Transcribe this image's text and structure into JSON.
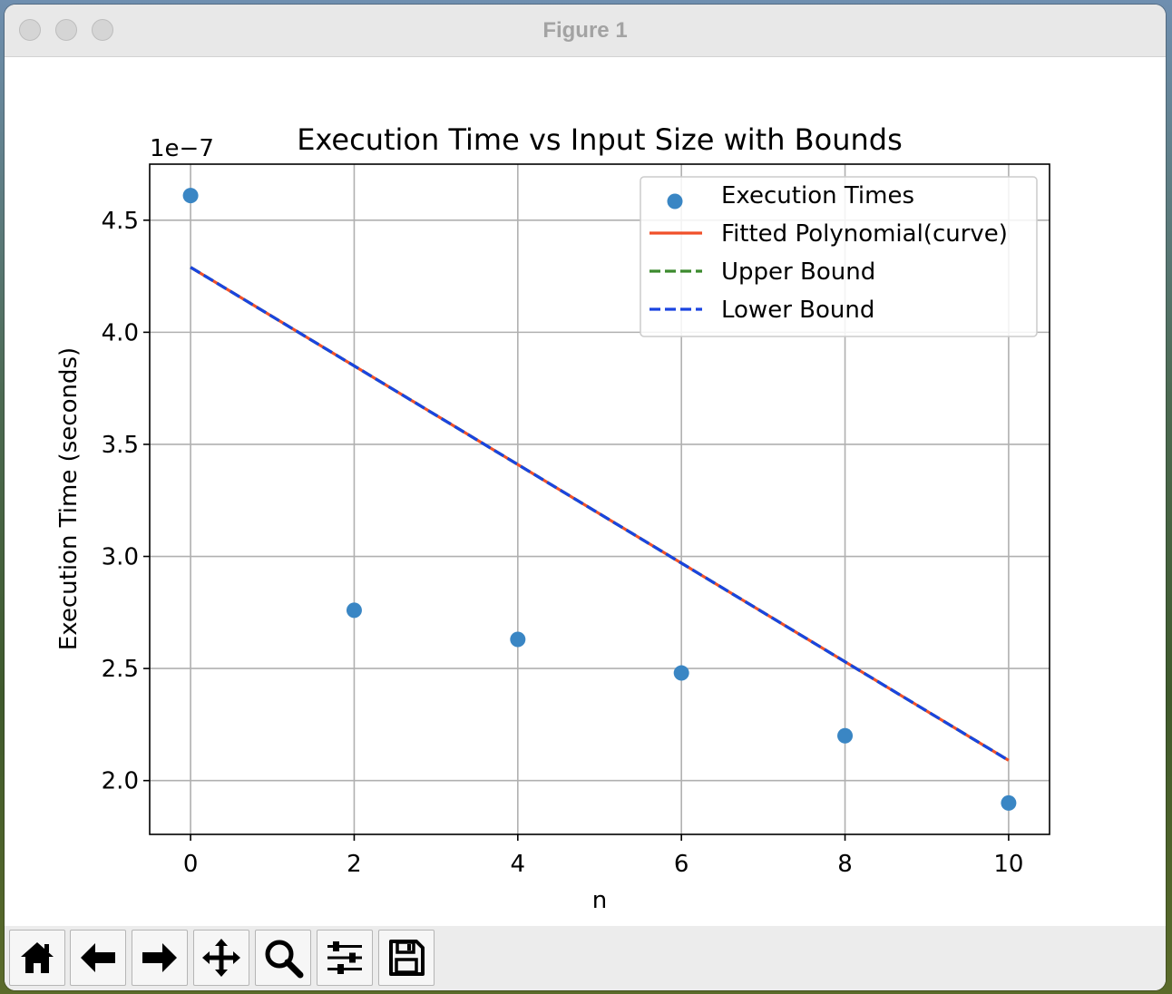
{
  "window": {
    "title": "Figure 1"
  },
  "toolbar": {
    "buttons": [
      {
        "name": "home-button",
        "icon": "home-icon"
      },
      {
        "name": "back-button",
        "icon": "arrow-left-icon"
      },
      {
        "name": "forward-button",
        "icon": "arrow-right-icon"
      },
      {
        "name": "pan-button",
        "icon": "move-icon"
      },
      {
        "name": "zoom-button",
        "icon": "magnifier-icon"
      },
      {
        "name": "configure-subplots-button",
        "icon": "sliders-icon"
      },
      {
        "name": "save-button",
        "icon": "floppy-disk-icon"
      }
    ]
  },
  "chart_data": {
    "type": "scatter",
    "title": "Execution Time vs Input Size with Bounds",
    "xlabel": "n",
    "ylabel": "Execution Time (seconds)",
    "y_offset_label": "1e−7",
    "xlim": [
      -0.5,
      10.5
    ],
    "ylim": [
      1.76,
      4.75
    ],
    "xticks": [
      0,
      2,
      4,
      6,
      8,
      10
    ],
    "xtick_labels": [
      "0",
      "2",
      "4",
      "6",
      "8",
      "10"
    ],
    "yticks": [
      2.0,
      2.5,
      3.0,
      3.5,
      4.0,
      4.5
    ],
    "ytick_labels": [
      "2.0",
      "2.5",
      "3.0",
      "3.5",
      "4.0",
      "4.5"
    ],
    "grid": true,
    "legend_position": "upper-right",
    "legend": [
      "Execution Times",
      "Fitted Polynomial(curve)",
      "Upper Bound",
      "Lower Bound"
    ],
    "series": [
      {
        "name": "Execution Times",
        "type": "scatter",
        "color": "#3a86c4",
        "x": [
          0,
          2,
          4,
          6,
          8,
          10
        ],
        "y": [
          4.61,
          2.76,
          2.63,
          2.48,
          2.2,
          1.9
        ]
      },
      {
        "name": "Fitted Polynomial(curve)",
        "type": "line",
        "style": "solid",
        "color": "#f0502a",
        "x": [
          0,
          10
        ],
        "y": [
          4.29,
          2.09
        ]
      },
      {
        "name": "Upper Bound",
        "type": "line",
        "style": "dashed",
        "color": "#3c8a2e",
        "x": [
          0,
          10
        ],
        "y": [
          4.29,
          2.09
        ]
      },
      {
        "name": "Lower Bound",
        "type": "line",
        "style": "dashed",
        "color": "#1a44e0",
        "x": [
          0,
          10
        ],
        "y": [
          4.29,
          2.09
        ]
      }
    ]
  }
}
